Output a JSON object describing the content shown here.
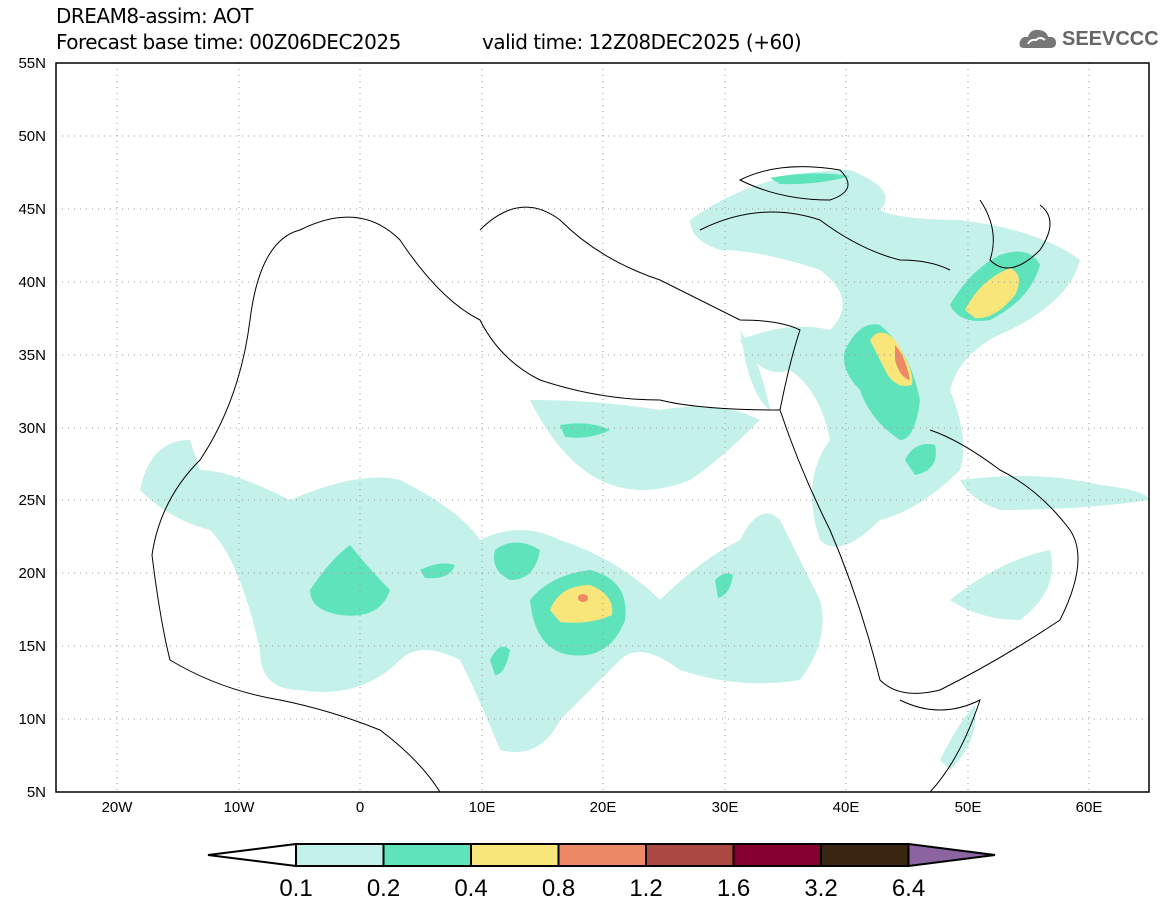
{
  "header": {
    "title": "DREAM8-assim: AOT",
    "base_time": "Forecast base time: 00Z06DEC2025",
    "valid_time": "valid time: 12Z08DEC2025 (+60)",
    "logo_text": "SEEVCCC"
  },
  "map": {
    "lon_range": [
      -25,
      65
    ],
    "lat_range": [
      5,
      55
    ],
    "lat_labels": [
      "55N",
      "50N",
      "45N",
      "40N",
      "35N",
      "30N",
      "25N",
      "20N",
      "15N",
      "10N",
      "5N"
    ],
    "lon_labels": [
      "20W",
      "10W",
      "0",
      "10E",
      "20E",
      "30E",
      "40E",
      "50E",
      "60E"
    ]
  },
  "colorbar": {
    "labels": [
      "0.1",
      "0.2",
      "0.4",
      "0.8",
      "1.2",
      "1.6",
      "3.2",
      "6.4"
    ],
    "colors": [
      "#c4f1ea",
      "#5ee3bb",
      "#f8e67a",
      "#ec8a68",
      "#ab4841",
      "#85002f",
      "#3a2412",
      "#8c64a2"
    ]
  }
}
